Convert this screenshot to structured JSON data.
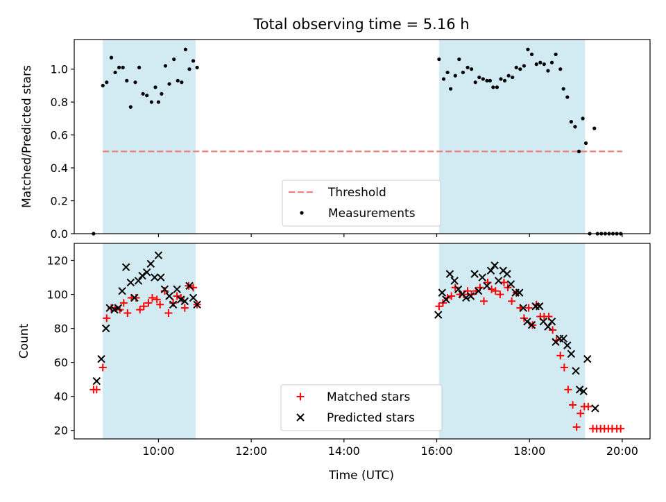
{
  "title": "Total observing time = 5.16 h",
  "xlabel": "Time (UTC)",
  "colors": {
    "band": "#add8e6",
    "threshold": "#f08080",
    "matched": "#ff0000",
    "predicted": "#000000",
    "measurement": "#000000"
  },
  "chart_data": [
    {
      "type": "scatter",
      "ylabel": "Matched/Predicted stars",
      "xlim": [
        "08:11",
        "20:36"
      ],
      "ylim": [
        0,
        1.18
      ],
      "xticks": [
        "10:00",
        "12:00",
        "14:00",
        "16:00",
        "18:00",
        "20:00"
      ],
      "yticks": [
        "0.0",
        "0.2",
        "0.4",
        "0.6",
        "0.8",
        "1.0"
      ],
      "observing_windows": [
        [
          "08:48",
          "10:48"
        ],
        [
          "16:03",
          "19:12"
        ]
      ],
      "threshold": {
        "name": "Threshold",
        "value": 0.5,
        "x": [
          "08:48",
          "20:00"
        ]
      },
      "legend": [
        "Threshold",
        "Measurements"
      ],
      "legend_position": "bottom-center",
      "series": [
        {
          "name": "Measurements",
          "points": [
            [
              "08:36",
              0.0
            ],
            [
              "08:48",
              0.9
            ],
            [
              "08:53",
              0.92
            ],
            [
              "08:59",
              1.07
            ],
            [
              "09:04",
              0.98
            ],
            [
              "09:09",
              1.01
            ],
            [
              "09:14",
              1.01
            ],
            [
              "09:19",
              0.93
            ],
            [
              "09:24",
              0.77
            ],
            [
              "09:30",
              0.92
            ],
            [
              "09:35",
              1.01
            ],
            [
              "09:40",
              0.85
            ],
            [
              "09:45",
              0.84
            ],
            [
              "09:51",
              0.8
            ],
            [
              "09:56",
              0.89
            ],
            [
              "10:00",
              0.8
            ],
            [
              "10:04",
              0.85
            ],
            [
              "10:09",
              1.02
            ],
            [
              "10:14",
              0.91
            ],
            [
              "10:20",
              1.06
            ],
            [
              "10:25",
              0.93
            ],
            [
              "10:30",
              0.92
            ],
            [
              "10:35",
              1.12
            ],
            [
              "10:40",
              1.0
            ],
            [
              "10:45",
              1.05
            ],
            [
              "10:50",
              1.01
            ],
            [
              "16:03",
              1.06
            ],
            [
              "16:09",
              0.94
            ],
            [
              "16:14",
              0.98
            ],
            [
              "16:18",
              0.88
            ],
            [
              "16:24",
              0.96
            ],
            [
              "16:29",
              1.06
            ],
            [
              "16:34",
              0.98
            ],
            [
              "16:40",
              1.01
            ],
            [
              "16:45",
              1.0
            ],
            [
              "16:50",
              0.92
            ],
            [
              "16:55",
              0.95
            ],
            [
              "17:00",
              0.94
            ],
            [
              "17:05",
              0.93
            ],
            [
              "17:09",
              0.93
            ],
            [
              "17:13",
              0.89
            ],
            [
              "17:18",
              0.89
            ],
            [
              "17:23",
              0.94
            ],
            [
              "17:28",
              0.93
            ],
            [
              "17:33",
              0.96
            ],
            [
              "17:38",
              0.95
            ],
            [
              "17:43",
              1.01
            ],
            [
              "17:48",
              1.0
            ],
            [
              "17:53",
              1.02
            ],
            [
              "17:58",
              1.12
            ],
            [
              "18:03",
              1.09
            ],
            [
              "18:09",
              1.03
            ],
            [
              "18:14",
              1.04
            ],
            [
              "18:19",
              1.03
            ],
            [
              "18:24",
              0.99
            ],
            [
              "18:29",
              1.04
            ],
            [
              "18:34",
              1.09
            ],
            [
              "18:40",
              1.0
            ],
            [
              "18:44",
              0.88
            ],
            [
              "18:49",
              0.83
            ],
            [
              "18:54",
              0.68
            ],
            [
              "18:59",
              0.65
            ],
            [
              "19:04",
              0.5
            ],
            [
              "19:09",
              0.7
            ],
            [
              "19:13",
              0.55
            ],
            [
              "19:18",
              0.0
            ],
            [
              "19:24",
              0.64
            ],
            [
              "19:28",
              0.0
            ],
            [
              "19:33",
              0.0
            ],
            [
              "19:38",
              0.0
            ],
            [
              "19:43",
              0.0
            ],
            [
              "19:48",
              0.0
            ],
            [
              "19:53",
              0.0
            ],
            [
              "19:58",
              0.0
            ]
          ]
        }
      ]
    },
    {
      "type": "scatter",
      "ylabel": "Count",
      "xlim": [
        "08:11",
        "20:36"
      ],
      "ylim": [
        15,
        130
      ],
      "xticks": [
        "10:00",
        "12:00",
        "14:00",
        "16:00",
        "18:00",
        "20:00"
      ],
      "yticks": [
        "20",
        "40",
        "60",
        "80",
        "100",
        "120"
      ],
      "observing_windows": [
        [
          "08:48",
          "10:48"
        ],
        [
          "16:03",
          "19:12"
        ]
      ],
      "legend": [
        "Matched stars",
        "Predicted stars"
      ],
      "legend_position": "bottom-center",
      "series": [
        {
          "name": "Matched stars",
          "marker": "+",
          "points": [
            [
              "08:36",
              44
            ],
            [
              "08:40",
              44
            ],
            [
              "08:48",
              57
            ],
            [
              "08:53",
              86
            ],
            [
              "08:59",
              92
            ],
            [
              "09:04",
              92
            ],
            [
              "09:10",
              91
            ],
            [
              "09:15",
              95
            ],
            [
              "09:20",
              89
            ],
            [
              "09:25",
              98
            ],
            [
              "09:31",
              98
            ],
            [
              "09:36",
              91
            ],
            [
              "09:41",
              93
            ],
            [
              "09:47",
              95
            ],
            [
              "09:52",
              98
            ],
            [
              "09:58",
              97
            ],
            [
              "10:02",
              94
            ],
            [
              "10:08",
              102
            ],
            [
              "10:13",
              89
            ],
            [
              "10:19",
              95
            ],
            [
              "10:24",
              99
            ],
            [
              "10:29",
              98
            ],
            [
              "10:34",
              92
            ],
            [
              "10:39",
              105
            ],
            [
              "10:45",
              104
            ],
            [
              "10:50",
              94
            ],
            [
              "16:03",
              93
            ],
            [
              "16:08",
              95
            ],
            [
              "16:14",
              98
            ],
            [
              "16:19",
              99
            ],
            [
              "16:24",
              104
            ],
            [
              "16:30",
              100
            ],
            [
              "16:35",
              100
            ],
            [
              "16:40",
              102
            ],
            [
              "16:45",
              100
            ],
            [
              "16:51",
              102
            ],
            [
              "16:56",
              104
            ],
            [
              "17:01",
              96
            ],
            [
              "17:06",
              107
            ],
            [
              "17:11",
              103
            ],
            [
              "17:16",
              102
            ],
            [
              "17:22",
              100
            ],
            [
              "17:27",
              107
            ],
            [
              "17:32",
              104
            ],
            [
              "17:37",
              96
            ],
            [
              "17:43",
              101
            ],
            [
              "17:48",
              92
            ],
            [
              "17:53",
              86
            ],
            [
              "17:59",
              92
            ],
            [
              "18:04",
              82
            ],
            [
              "18:09",
              94
            ],
            [
              "18:14",
              87
            ],
            [
              "18:19",
              87
            ],
            [
              "18:25",
              87
            ],
            [
              "18:30",
              79
            ],
            [
              "18:35",
              73
            ],
            [
              "18:40",
              64
            ],
            [
              "18:45",
              57
            ],
            [
              "18:50",
              44
            ],
            [
              "18:56",
              35
            ],
            [
              "19:01",
              22
            ],
            [
              "19:06",
              30
            ],
            [
              "19:11",
              34
            ],
            [
              "19:16",
              34
            ],
            [
              "19:22",
              21
            ],
            [
              "19:27",
              21
            ],
            [
              "19:32",
              21
            ],
            [
              "19:37",
              21
            ],
            [
              "19:42",
              21
            ],
            [
              "19:47",
              21
            ],
            [
              "19:53",
              21
            ],
            [
              "19:58",
              21
            ]
          ]
        },
        {
          "name": "Predicted stars",
          "marker": "x",
          "points": [
            [
              "08:40",
              49
            ],
            [
              "08:46",
              62
            ],
            [
              "08:52",
              80
            ],
            [
              "08:57",
              92
            ],
            [
              "09:03",
              91
            ],
            [
              "09:08",
              92
            ],
            [
              "09:13",
              102
            ],
            [
              "09:18",
              116
            ],
            [
              "09:24",
              107
            ],
            [
              "09:29",
              98
            ],
            [
              "09:34",
              108
            ],
            [
              "09:39",
              111
            ],
            [
              "09:45",
              113
            ],
            [
              "09:50",
              118
            ],
            [
              "09:55",
              110
            ],
            [
              "10:00",
              123
            ],
            [
              "10:03",
              110
            ],
            [
              "10:08",
              103
            ],
            [
              "10:14",
              99
            ],
            [
              "10:19",
              94
            ],
            [
              "10:24",
              103
            ],
            [
              "10:29",
              97
            ],
            [
              "10:34",
              96
            ],
            [
              "10:40",
              105
            ],
            [
              "10:45",
              98
            ],
            [
              "10:50",
              94
            ],
            [
              "16:02",
              88
            ],
            [
              "16:07",
              101
            ],
            [
              "16:12",
              97
            ],
            [
              "16:17",
              112
            ],
            [
              "16:23",
              108
            ],
            [
              "16:28",
              103
            ],
            [
              "16:33",
              100
            ],
            [
              "16:38",
              98
            ],
            [
              "16:44",
              99
            ],
            [
              "16:49",
              112
            ],
            [
              "16:54",
              102
            ],
            [
              "16:59",
              110
            ],
            [
              "17:05",
              105
            ],
            [
              "17:10",
              114
            ],
            [
              "17:15",
              117
            ],
            [
              "17:20",
              108
            ],
            [
              "17:26",
              114
            ],
            [
              "17:31",
              112
            ],
            [
              "17:36",
              106
            ],
            [
              "17:42",
              101
            ],
            [
              "17:47",
              101
            ],
            [
              "17:52",
              92
            ],
            [
              "17:57",
              84
            ],
            [
              "18:03",
              82
            ],
            [
              "18:08",
              93
            ],
            [
              "18:13",
              93
            ],
            [
              "18:18",
              84
            ],
            [
              "18:24",
              81
            ],
            [
              "18:29",
              84
            ],
            [
              "18:34",
              72
            ],
            [
              "18:39",
              74
            ],
            [
              "18:44",
              74
            ],
            [
              "18:49",
              70
            ],
            [
              "18:54",
              65
            ],
            [
              "19:00",
              55
            ],
            [
              "19:05",
              44
            ],
            [
              "19:10",
              43
            ],
            [
              "19:15",
              62
            ],
            [
              "19:25",
              33
            ]
          ]
        }
      ]
    }
  ]
}
